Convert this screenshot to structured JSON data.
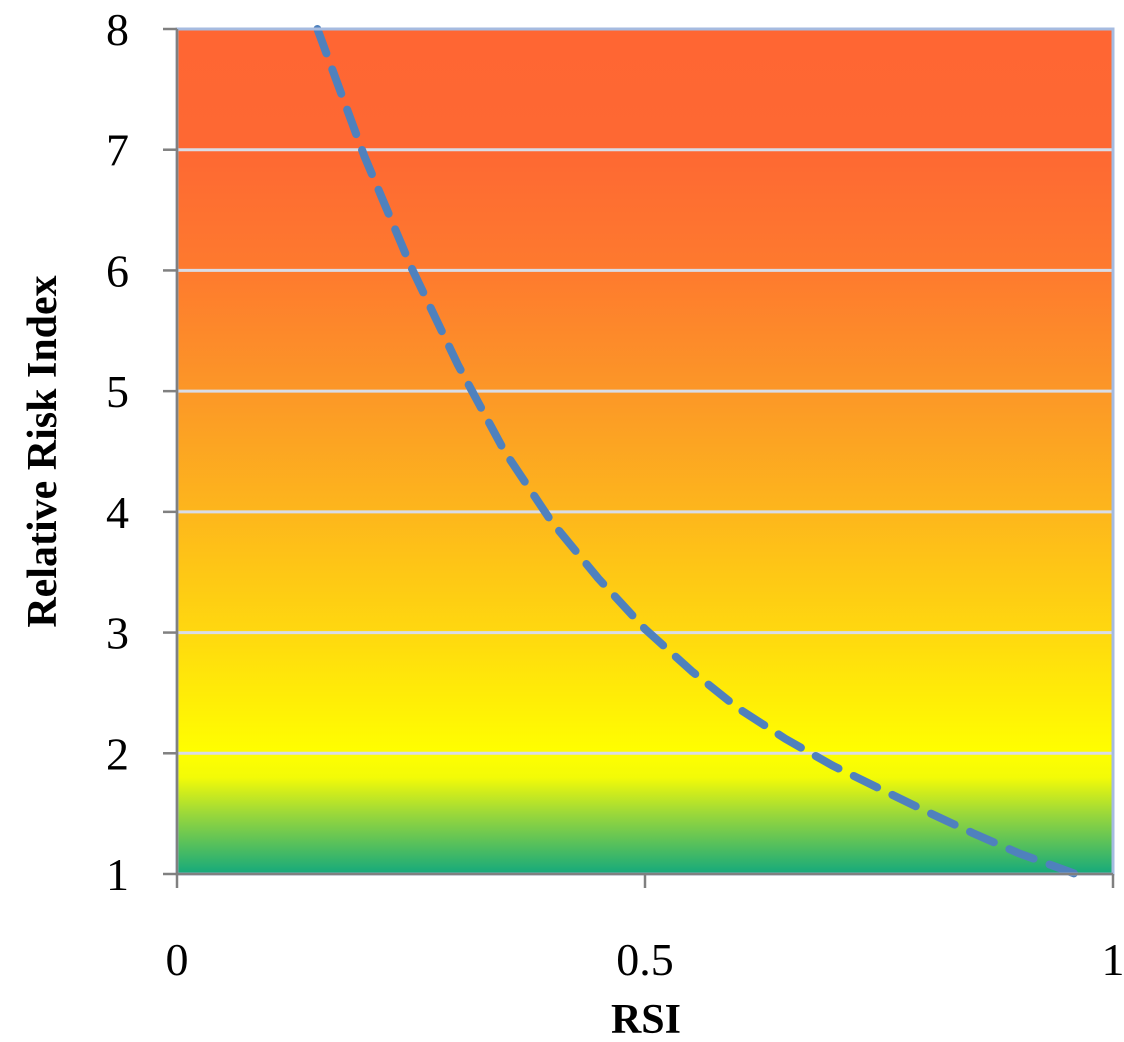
{
  "chart_data": {
    "type": "line",
    "title": "",
    "xlabel": "RSI",
    "ylabel": "Relative Risk Index",
    "xlim": [
      0,
      1
    ],
    "ylim": [
      1,
      8
    ],
    "x_ticks": [
      "0",
      "0.5",
      "1"
    ],
    "y_ticks": [
      "1",
      "2",
      "3",
      "4",
      "5",
      "6",
      "7",
      "8"
    ],
    "grid": "horizontal",
    "legend": "none",
    "background_gradient": [
      {
        "y": 1.0,
        "color": "#14a97c"
      },
      {
        "y": 1.5,
        "color": "#9bd83a"
      },
      {
        "y": 1.8,
        "color": "#f3fb07"
      },
      {
        "y": 2.0,
        "color": "#ffff00"
      },
      {
        "y": 3.0,
        "color": "#ffd80f"
      },
      {
        "y": 4.0,
        "color": "#fdb61c"
      },
      {
        "y": 5.0,
        "color": "#fc9727"
      },
      {
        "y": 6.0,
        "color": "#fe7a2e"
      },
      {
        "y": 7.0,
        "color": "#fe6833"
      },
      {
        "y": 8.0,
        "color": "#ff6633"
      }
    ],
    "series": [
      {
        "style": "dashed",
        "color": "#4f81bd",
        "x": [
          0.15,
          0.2,
          0.25,
          0.3,
          0.35,
          0.4,
          0.45,
          0.5,
          0.55,
          0.6,
          0.65,
          0.7,
          0.75,
          0.8,
          0.85,
          0.9,
          0.96
        ],
        "y": [
          8.0,
          6.95,
          6.03,
          5.22,
          4.5,
          3.92,
          3.45,
          3.03,
          2.68,
          2.37,
          2.12,
          1.9,
          1.71,
          1.52,
          1.34,
          1.17,
          1.0
        ]
      }
    ],
    "colors": {
      "grid": "#d9dce6",
      "axis": "#808080",
      "frame": "#a6bbe0"
    }
  }
}
